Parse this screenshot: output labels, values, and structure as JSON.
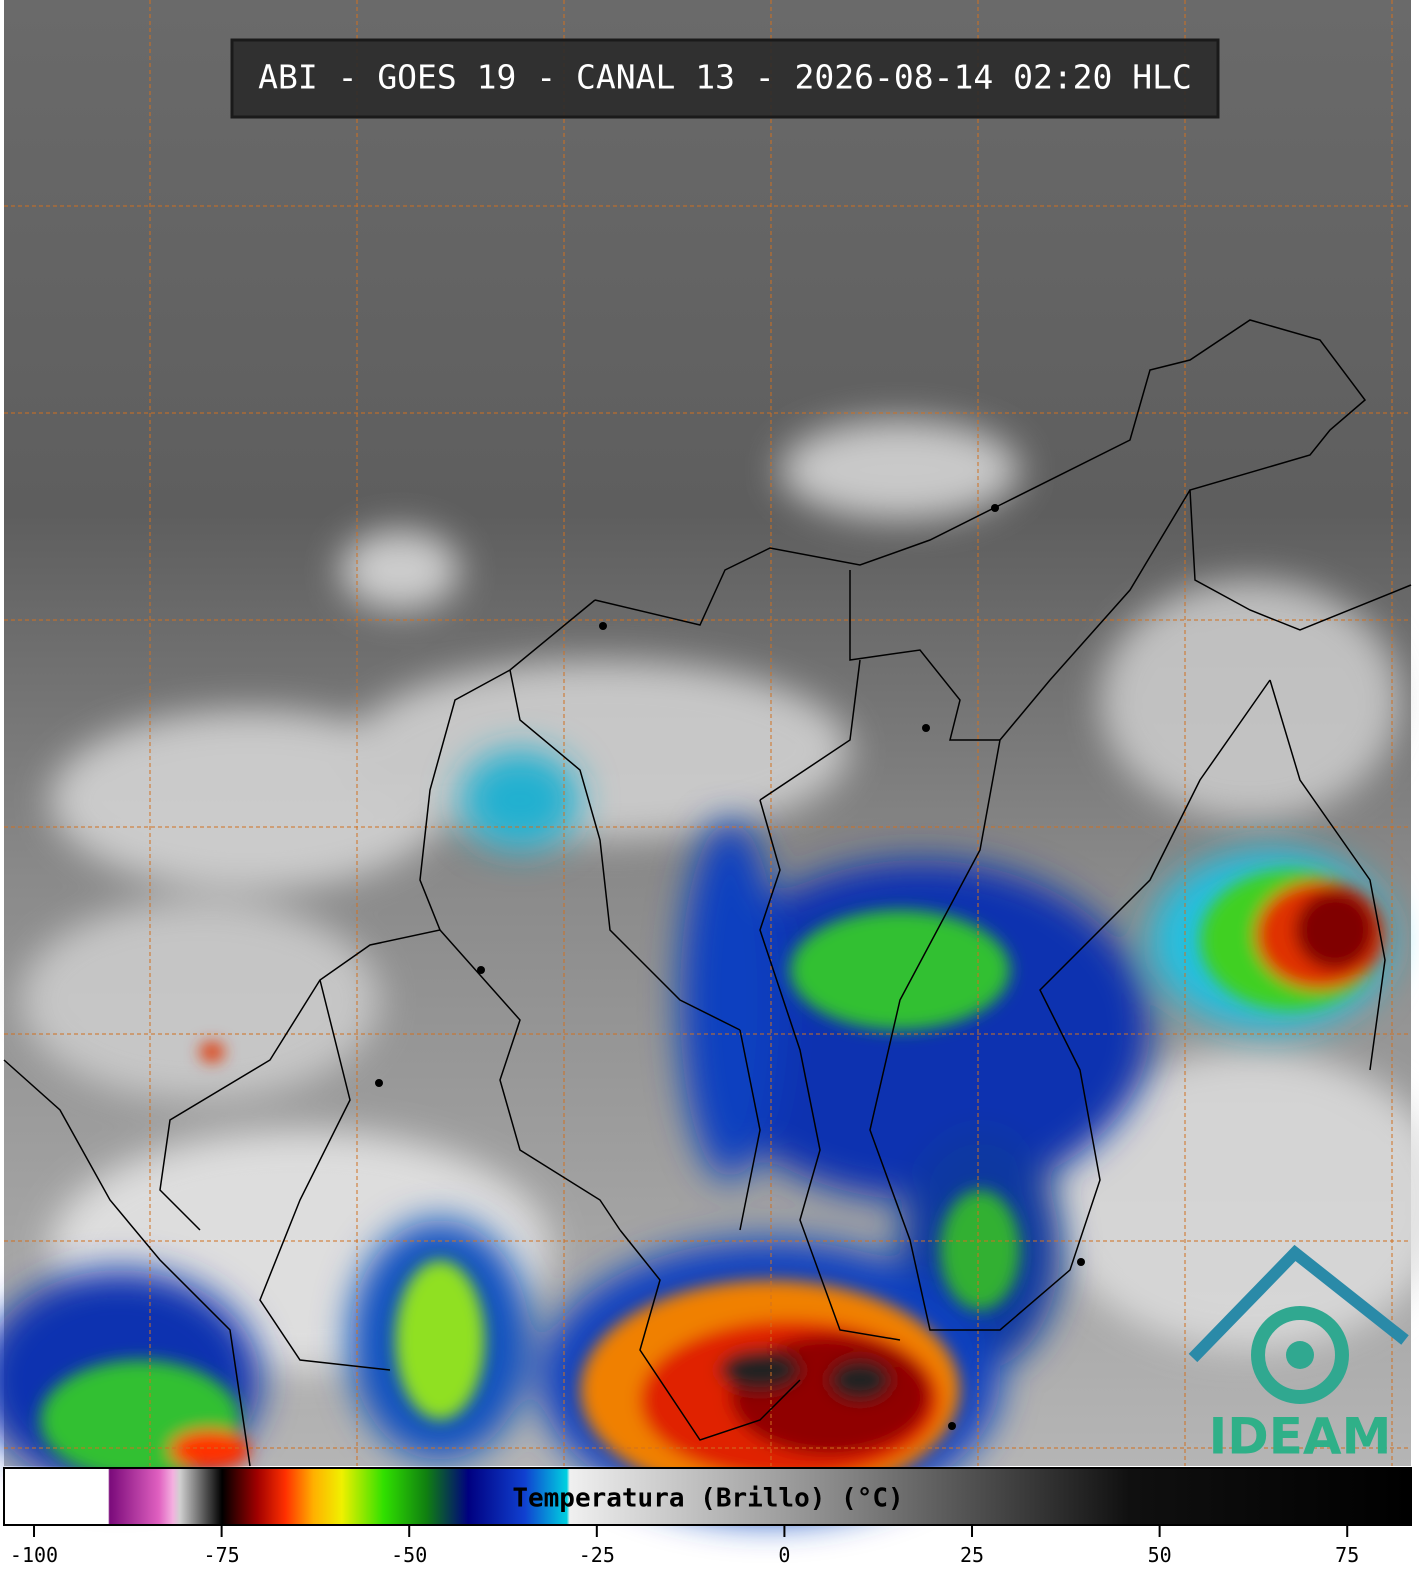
{
  "title": "ABI - GOES 19 - CANAL 13 - 2026-08-14 02:20 HLC",
  "colorbar": {
    "label": "Temperatura (Brillo) (°C)",
    "lim": [
      -104,
      83.5
    ],
    "ticks": [
      -100,
      -75,
      -50,
      -25,
      0,
      25,
      50,
      75
    ]
  },
  "logo": "IDEAM"
}
